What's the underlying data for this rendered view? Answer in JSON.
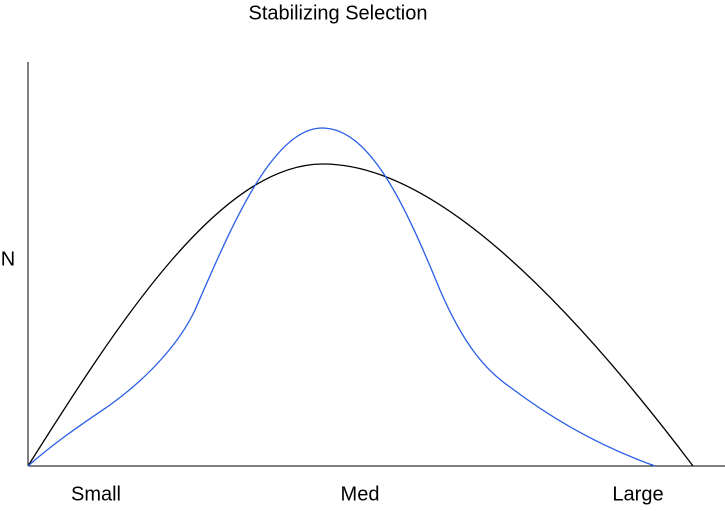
{
  "title": "Stabilizing Selection",
  "y_axis_label": "N",
  "x_labels": [
    "Small",
    "Med",
    "Large"
  ]
}
